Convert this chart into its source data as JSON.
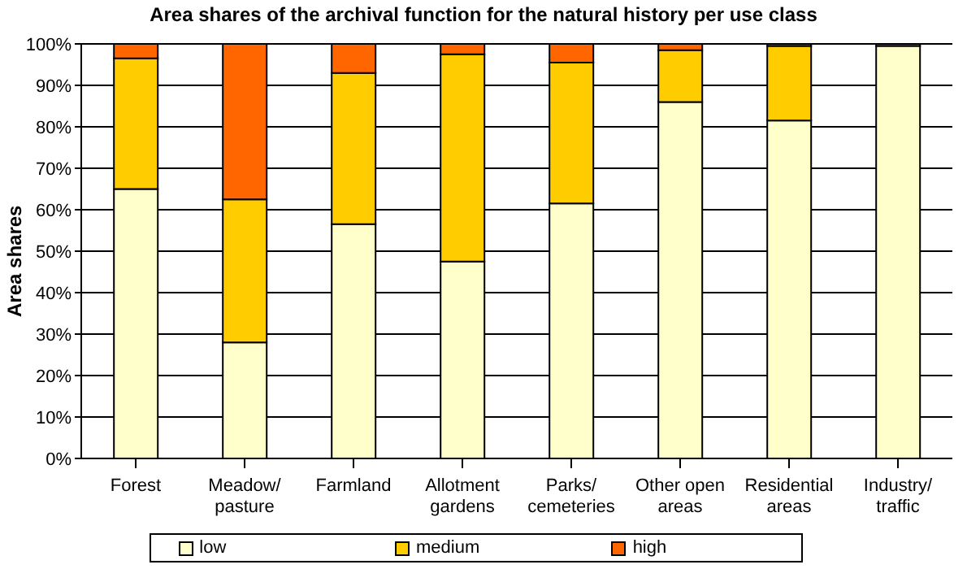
{
  "chart_data": {
    "type": "bar",
    "title": "Area shares of the archival function for the natural history per use class",
    "ylabel": "Area shares",
    "categories": [
      "Forest",
      "Meadow/\npasture",
      "Farmland",
      "Allotment\ngardens",
      "Parks/\ncemeteries",
      "Other open\nareas",
      "Residential\nareas",
      "Industry/\ntraffic"
    ],
    "stacked": true,
    "series": [
      {
        "name": "low",
        "color": "#ffffcc",
        "values": [
          65,
          28,
          56.5,
          47.5,
          61.5,
          86,
          81.5,
          99.5
        ]
      },
      {
        "name": "medium",
        "color": "#ffcc00",
        "values": [
          31.5,
          34.5,
          36.5,
          50,
          34,
          12.5,
          18,
          0
        ]
      },
      {
        "name": "high",
        "color": "#ff6600",
        "values": [
          3.5,
          37.5,
          7,
          2.5,
          4.5,
          1.5,
          0.5,
          0.5
        ]
      }
    ],
    "ylim": [
      0,
      100
    ],
    "yticks": [
      {
        "value": 0,
        "label": "0%"
      },
      {
        "value": 10,
        "label": "10%"
      },
      {
        "value": 20,
        "label": "20%"
      },
      {
        "value": 30,
        "label": "30%"
      },
      {
        "value": 40,
        "label": "40%"
      },
      {
        "value": 50,
        "label": "50%"
      },
      {
        "value": 60,
        "label": "60%"
      },
      {
        "value": 70,
        "label": "70%"
      },
      {
        "value": 80,
        "label": "80%"
      },
      {
        "value": 90,
        "label": "90%"
      },
      {
        "value": 100,
        "label": "100%"
      }
    ],
    "grid": "y",
    "legend": "bottom"
  }
}
